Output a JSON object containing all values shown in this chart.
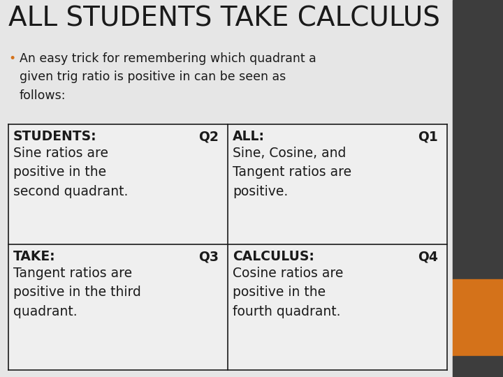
{
  "title": "ALL STUDENTS TAKE CALCULUS",
  "bullet_text": "An easy trick for remembering which quadrant a\ngiven trig ratio is positive in can be seen as\nfollows:",
  "cells": [
    {
      "header_bold": "STUDENTS:",
      "header_quad": "Q2",
      "body": "Sine ratios are\npositive in the\nsecond quadrant.",
      "row": 0,
      "col": 0
    },
    {
      "header_bold": "ALL:",
      "header_quad": "Q1",
      "body": "Sine, Cosine, and\nTangent ratios are\npositive.",
      "row": 0,
      "col": 1
    },
    {
      "header_bold": "TAKE:",
      "header_quad": "Q3",
      "body": "Tangent ratios are\npositive in the third\nquadrant.",
      "row": 1,
      "col": 0
    },
    {
      "header_bold": "CALCULUS:",
      "header_quad": "Q4",
      "body": "Cosine ratios are\npositive in the\nfourth quadrant.",
      "row": 1,
      "col": 1
    }
  ],
  "bg_color": "#e6e6e6",
  "sidebar_dark": "#3d3d3d",
  "sidebar_orange": "#d4721a",
  "title_color": "#1a1a1a",
  "bullet_color": "#d4721a",
  "text_color": "#1a1a1a",
  "table_bg": "#efefef",
  "table_border": "#1a1a1a",
  "title_fontsize": 28,
  "bullet_fontsize": 12.5,
  "header_fontsize": 13.5,
  "body_fontsize": 13.5
}
